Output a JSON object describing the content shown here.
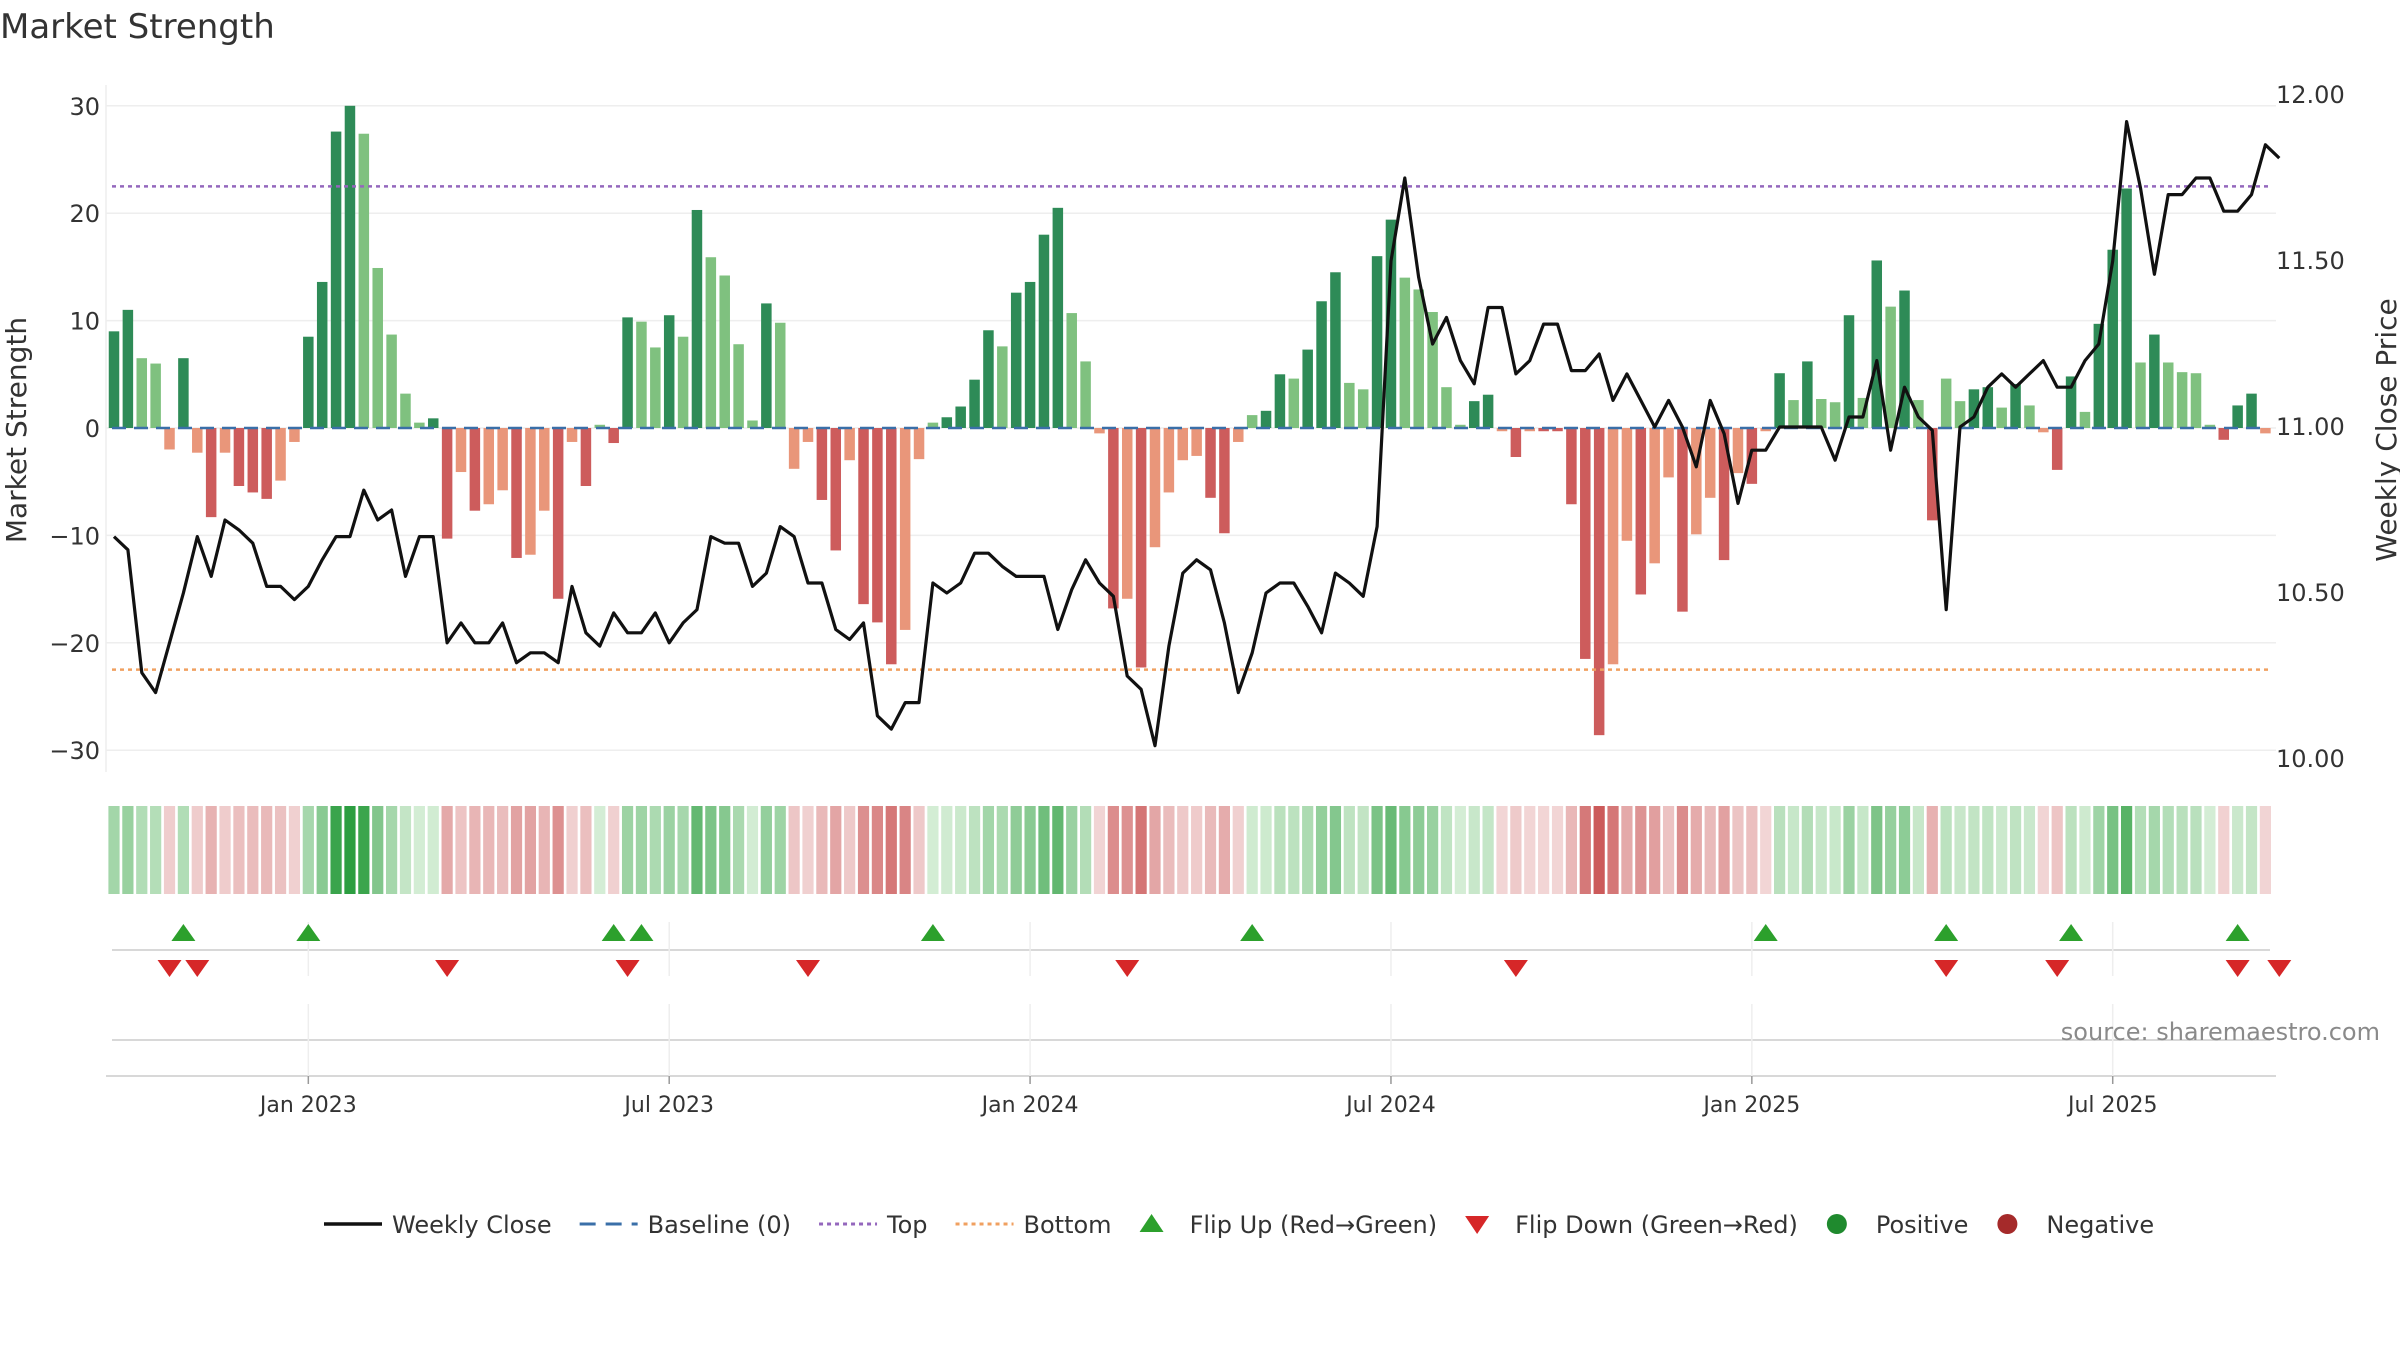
{
  "chart_data": {
    "type": "bar",
    "title": "Market Strength",
    "ylabel_left": "Market Strength",
    "ylabel_right": "Weekly Close Price",
    "left_yticks": [
      30,
      20,
      10,
      0,
      -10,
      -20,
      -30
    ],
    "left_ytick_labels": [
      "30",
      "20",
      "10",
      "0",
      "−10",
      "−20",
      "−30"
    ],
    "right_yticks": [
      12.0,
      11.5,
      11.0,
      10.5,
      10.0
    ],
    "right_ytick_labels": [
      "12.00",
      "11.50",
      "11.00",
      "10.50",
      "10.00"
    ],
    "ylim_left": [
      -32,
      32
    ],
    "ylim_right": [
      9.95,
      12.07
    ],
    "top_level": 22.5,
    "bottom_level": -22.5,
    "x_ticks": [
      {
        "label": "Jan 2023",
        "week": 14
      },
      {
        "label": "Jul 2023",
        "week": 40
      },
      {
        "label": "Jan 2024",
        "week": 66
      },
      {
        "label": "Jul 2024",
        "week": 92
      },
      {
        "label": "Jan 2025",
        "week": 118
      },
      {
        "label": "Jul 2025",
        "week": 144
      }
    ],
    "strength": [
      9,
      11,
      6.5,
      6,
      -2,
      6.5,
      -2.3,
      -8.3,
      -2.3,
      -5.4,
      -6,
      -6.6,
      -4.9,
      -1.3,
      8.5,
      13.6,
      27.6,
      30,
      27.4,
      14.9,
      8.7,
      3.2,
      0.5,
      0.9,
      -10.3,
      -4.1,
      -7.7,
      -7.1,
      -5.8,
      -12.1,
      -11.8,
      -7.7,
      -15.9,
      -1.3,
      -5.4,
      0.3,
      -1.4,
      10.3,
      9.9,
      7.5,
      10.5,
      8.5,
      20.3,
      15.9,
      14.2,
      7.8,
      0.7,
      11.6,
      9.8,
      -3.8,
      -1.3,
      -6.7,
      -11.4,
      -3,
      -16.4,
      -18.1,
      -22,
      -18.8,
      -2.9,
      0.5,
      1,
      2,
      4.5,
      9.1,
      7.6,
      12.6,
      13.6,
      18,
      20.5,
      10.7,
      6.2,
      -0.5,
      -16.8,
      -15.9,
      -22.3,
      -11.1,
      -6,
      -3,
      -2.6,
      -6.5,
      -9.8,
      -1.3,
      1.2,
      1.6,
      5,
      4.6,
      7.3,
      11.8,
      14.5,
      4.2,
      3.6,
      16,
      19.4,
      14,
      12.9,
      10.8,
      3.8,
      0.3,
      2.5,
      3.1,
      -0.3,
      -2.7,
      -0.3,
      -0.3,
      -0.3,
      -7.1,
      -21.5,
      -28.6,
      -22,
      -10.5,
      -15.5,
      -12.6,
      -4.6,
      -17.1,
      -9.9,
      -6.5,
      -12.3,
      -4.2,
      -5.2,
      -0.3,
      5.1,
      2.6,
      6.2,
      2.7,
      2.4,
      10.5,
      2.8,
      15.6,
      11.3,
      12.8,
      2.6,
      -8.6,
      4.6,
      2.5,
      3.6,
      3.8,
      1.9,
      4.1,
      2.1,
      -0.4,
      -3.9,
      4.8,
      1.5,
      9.7,
      16.6,
      22.3,
      6.1,
      8.7,
      6.1,
      5.2,
      5.1,
      0.3,
      -1.1,
      2.1,
      3.2,
      -0.5
    ],
    "weekly_close": [
      10.67,
      10.63,
      10.26,
      10.2,
      10.35,
      10.5,
      10.67,
      10.55,
      10.72,
      10.69,
      10.65,
      10.52,
      10.52,
      10.48,
      10.52,
      10.6,
      10.67,
      10.67,
      10.81,
      10.72,
      10.75,
      10.55,
      10.67,
      10.67,
      10.35,
      10.41,
      10.35,
      10.35,
      10.41,
      10.29,
      10.32,
      10.32,
      10.29,
      10.52,
      10.38,
      10.34,
      10.44,
      10.38,
      10.38,
      10.44,
      10.35,
      10.41,
      10.45,
      10.67,
      10.65,
      10.65,
      10.52,
      10.56,
      10.7,
      10.67,
      10.53,
      10.53,
      10.39,
      10.36,
      10.41,
      10.13,
      10.09,
      10.17,
      10.17,
      10.53,
      10.5,
      10.53,
      10.62,
      10.62,
      10.58,
      10.55,
      10.55,
      10.55,
      10.39,
      10.51,
      10.6,
      10.53,
      10.49,
      10.25,
      10.21,
      10.04,
      10.34,
      10.56,
      10.6,
      10.57,
      10.41,
      10.2,
      10.32,
      10.5,
      10.53,
      10.53,
      10.46,
      10.38,
      10.56,
      10.53,
      10.49,
      10.7,
      11.5,
      11.75,
      11.45,
      11.25,
      11.33,
      11.2,
      11.13,
      11.36,
      11.36,
      11.16,
      11.2,
      11.31,
      11.31,
      11.17,
      11.17,
      11.22,
      11.08,
      11.16,
      11.08,
      11.0,
      11.08,
      11.0,
      10.88,
      11.08,
      10.98,
      10.77,
      10.93,
      10.93,
      11.0,
      11.0,
      11.0,
      11.0,
      10.9,
      11.03,
      11.03,
      11.2,
      10.93,
      11.12,
      11.03,
      10.99,
      10.45,
      11.0,
      11.03,
      11.12,
      11.16,
      11.12,
      11.16,
      11.2,
      11.12,
      11.12,
      11.2,
      11.25,
      11.5,
      11.92,
      11.72,
      11.46,
      11.7,
      11.7,
      11.75,
      11.75,
      11.65,
      11.65,
      11.7,
      11.85,
      11.81
    ],
    "flip_up_weeks": [
      5,
      14,
      36,
      38,
      59,
      82,
      119,
      132,
      141,
      153
    ],
    "flip_down_weeks": [
      4,
      6,
      24,
      37,
      50,
      73,
      101,
      132,
      140,
      153,
      156
    ],
    "legend": [
      {
        "label": "Weekly Close",
        "kind": "line",
        "color": "#111111"
      },
      {
        "label": "Baseline (0)",
        "kind": "dash",
        "color": "#3a6fa8"
      },
      {
        "label": "Top",
        "kind": "dot",
        "color": "#9467bd"
      },
      {
        "label": "Bottom",
        "kind": "dot",
        "color": "#f0a060"
      },
      {
        "label": "Flip Up (Red→Green)",
        "kind": "triangle-up",
        "color": "#2ca02c"
      },
      {
        "label": "Flip Down (Green→Red)",
        "kind": "triangle-down",
        "color": "#d62728"
      },
      {
        "label": "Positive",
        "kind": "circle",
        "color": "#1f8a2e"
      },
      {
        "label": "Negative",
        "kind": "circle",
        "color": "#a52a2a"
      }
    ],
    "source": "source: sharemaestro.com"
  },
  "colors": {
    "pos_strong": "#2e8b57",
    "pos_light": "#7fc17f",
    "neg_strong": "#cd5c5c",
    "neg_light": "#e9967a",
    "line": "#111111",
    "top": "#9467bd",
    "bottom": "#f0a060",
    "baseline": "#3a6fa8"
  }
}
